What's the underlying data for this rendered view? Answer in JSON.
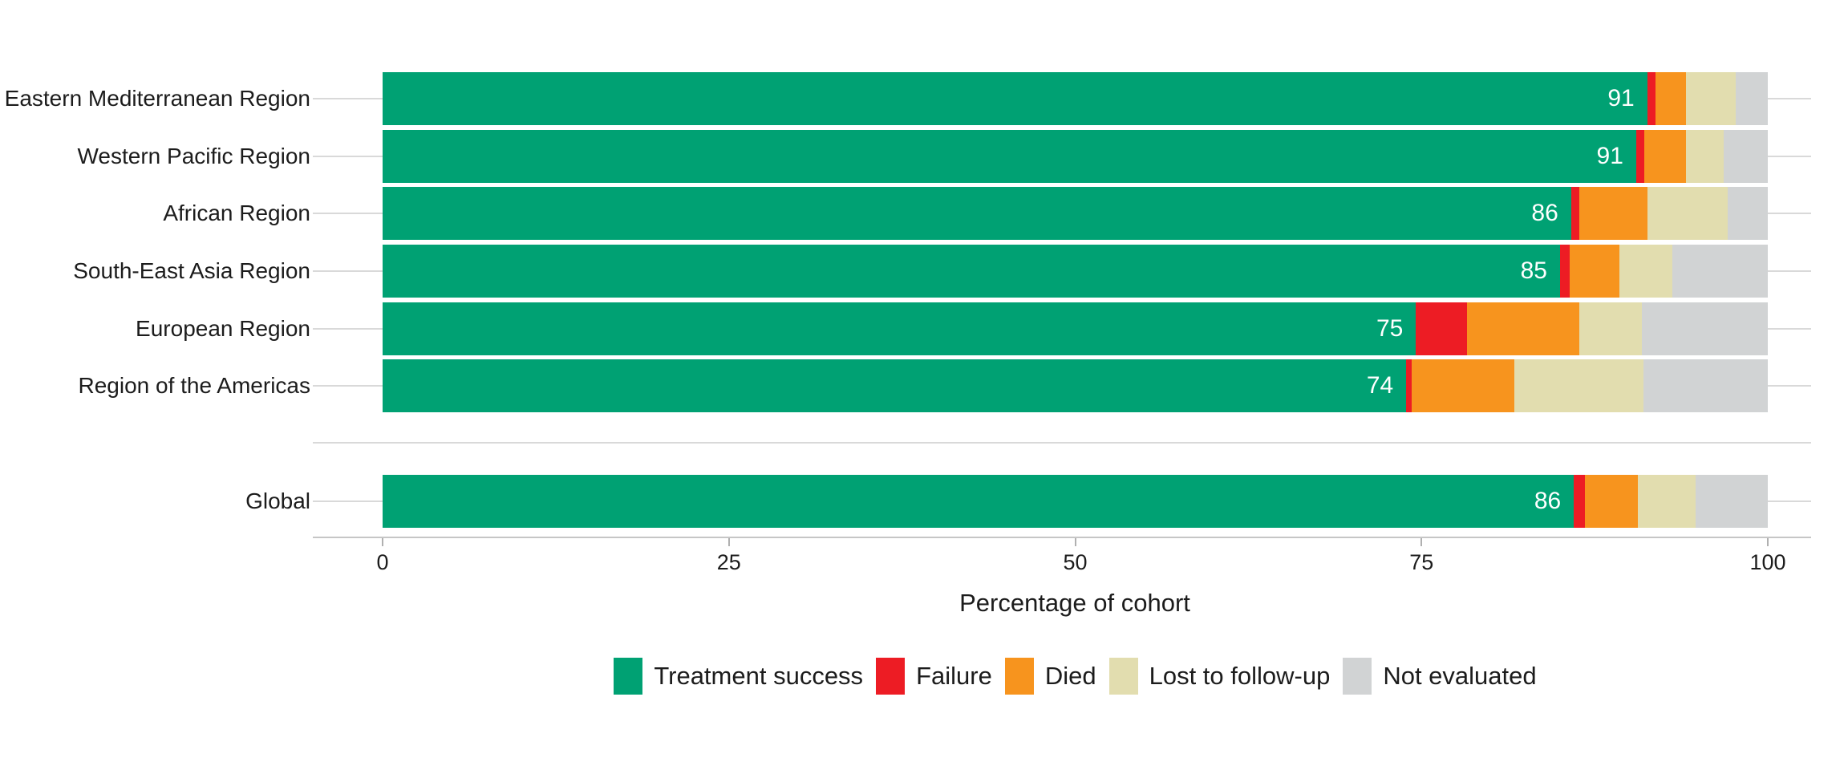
{
  "chart_data": {
    "type": "bar",
    "orientation": "horizontal",
    "stacked": true,
    "title": "",
    "xlabel": "Percentage of cohort",
    "xlim": [
      0,
      100
    ],
    "xticks": [
      "0",
      "25",
      "50",
      "75",
      "100"
    ],
    "xtick_values": [
      0,
      25,
      50,
      75,
      100
    ],
    "grid": "horizontal row guide lines, light gray",
    "legend_position": "bottom center",
    "series": [
      {
        "name": "Treatment success",
        "color": "#00A173"
      },
      {
        "name": "Failure",
        "color": "#ED1C24"
      },
      {
        "name": "Died",
        "color": "#F7941E"
      },
      {
        "name": "Lost to follow-up",
        "color": "#E2DDAF"
      },
      {
        "name": "Not evaluated",
        "color": "#D1D3D4"
      }
    ],
    "categories": [
      "Eastern Mediterranean Region",
      "Western Pacific Region",
      "African Region",
      "South-East Asia Region",
      "European Region",
      "Region of the Americas",
      "Global"
    ],
    "rows": [
      {
        "label": "Eastern Mediterranean Region",
        "value_label": "91",
        "values": [
          91.3,
          0.6,
          2.2,
          3.6,
          2.3
        ]
      },
      {
        "label": "Western Pacific Region",
        "value_label": "91",
        "values": [
          90.5,
          0.6,
          3.0,
          2.7,
          3.2
        ]
      },
      {
        "label": "African Region",
        "value_label": "86",
        "values": [
          85.8,
          0.6,
          4.9,
          5.8,
          2.9
        ]
      },
      {
        "label": "South-East Asia Region",
        "value_label": "85",
        "values": [
          85.0,
          0.7,
          3.6,
          3.8,
          6.9
        ]
      },
      {
        "label": "European Region",
        "value_label": "75",
        "values": [
          74.6,
          3.7,
          8.1,
          4.5,
          9.1
        ]
      },
      {
        "label": "Region of the Americas",
        "value_label": "74",
        "values": [
          73.9,
          0.4,
          7.4,
          9.3,
          9.0
        ]
      },
      {
        "label": "Global",
        "value_label": "86",
        "values": [
          86.0,
          0.8,
          3.8,
          4.2,
          5.2
        ],
        "separated_from_regions": true
      }
    ]
  },
  "colors": {
    "background": "#FFFFFF",
    "gridline": "#D9D9D9",
    "axis_line": "#C6C6C6",
    "tick_mark": "#B0B0B0",
    "text": "#1C1C1C",
    "bar_value_text": "#FFFFFF"
  }
}
